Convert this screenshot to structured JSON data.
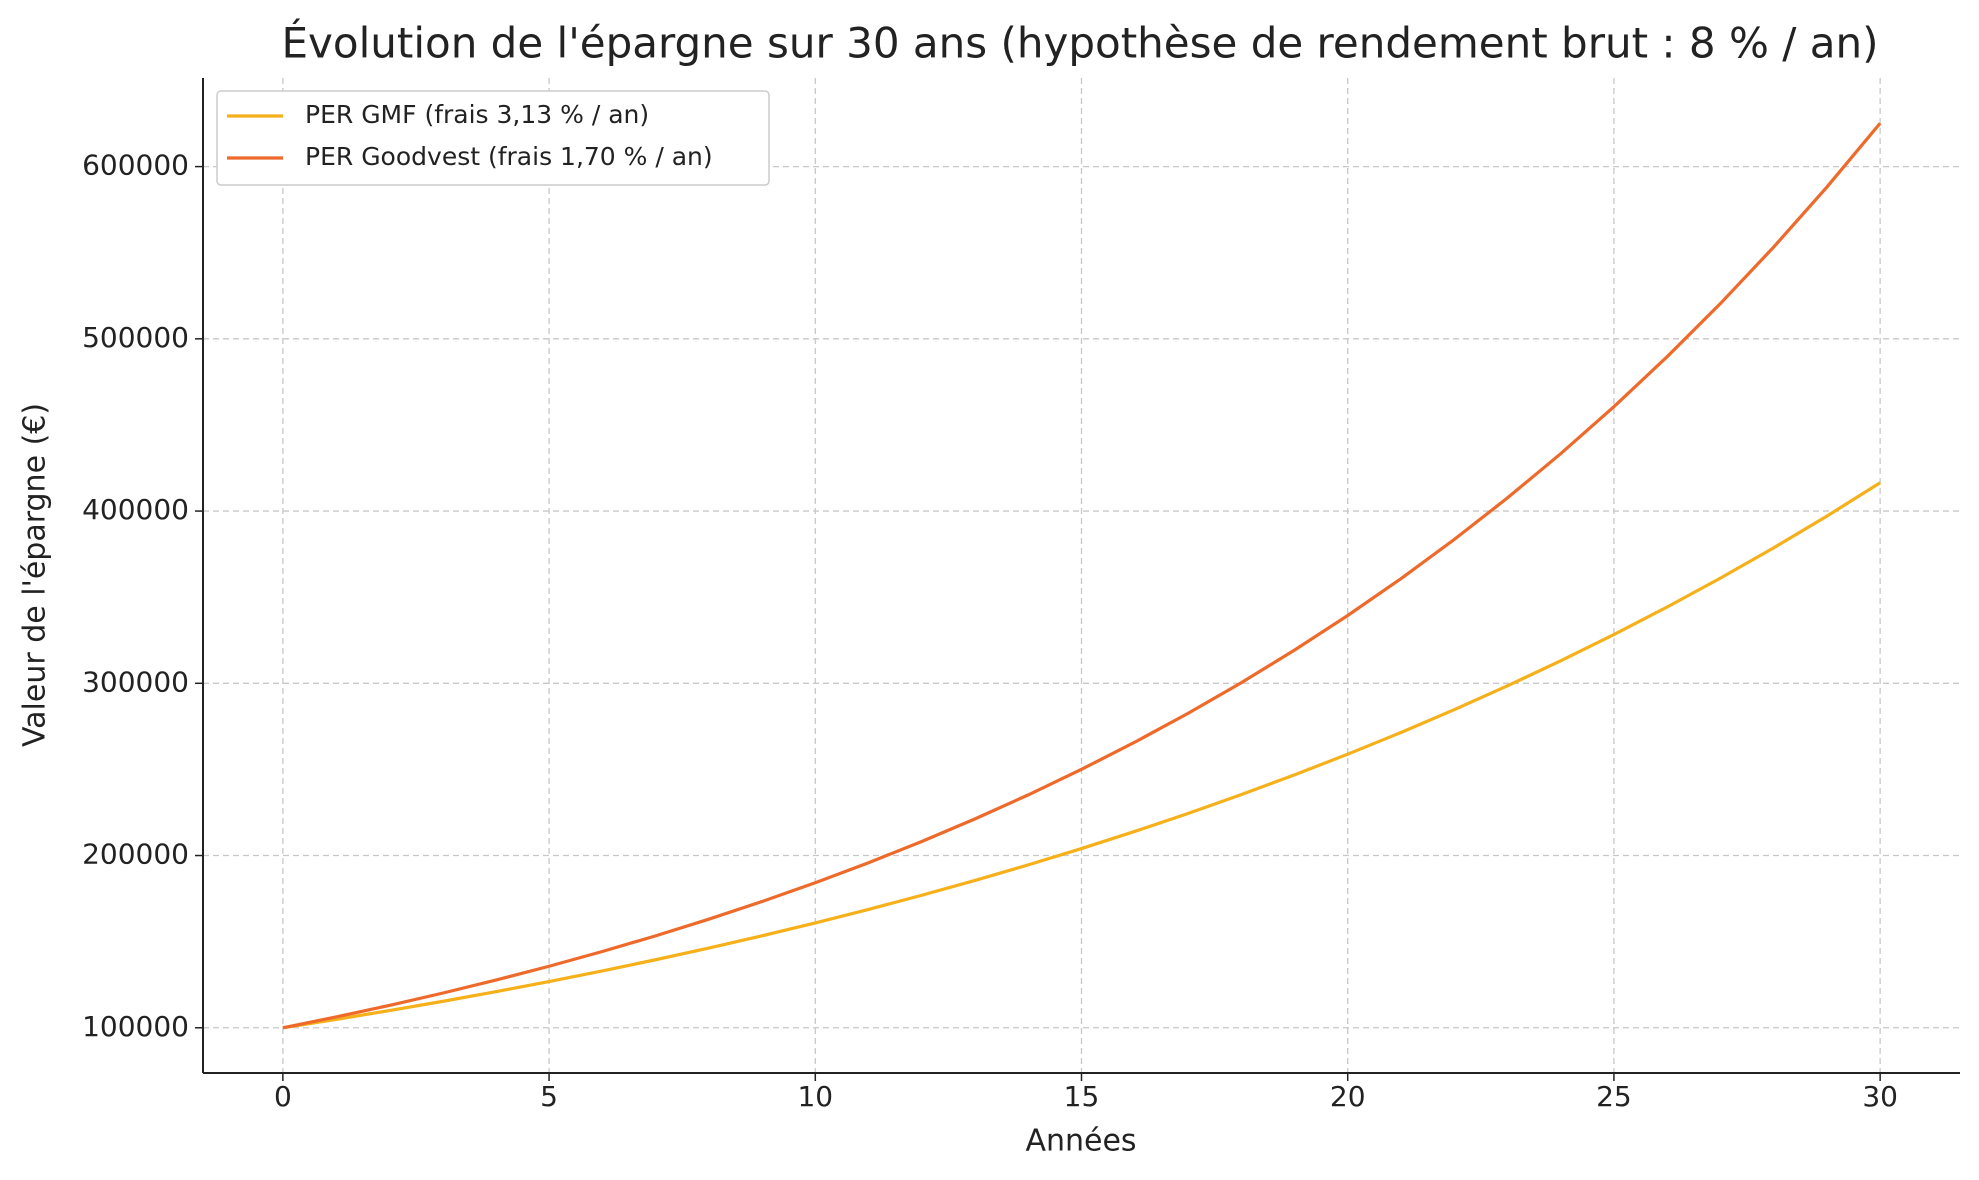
{
  "chart_data": {
    "type": "line",
    "title": "Évolution de l'épargne sur 30 ans (hypothèse de rendement brut : 8 % / an)",
    "x_label": "Années",
    "y_label": "Valeur de l'épargne (€)",
    "x": [
      0,
      1,
      2,
      3,
      4,
      5,
      6,
      7,
      8,
      9,
      10,
      11,
      12,
      13,
      14,
      15,
      16,
      17,
      18,
      19,
      20,
      21,
      22,
      23,
      24,
      25,
      26,
      27,
      28,
      29,
      30
    ],
    "series": [
      {
        "name": "PER GMF (frais 3,13 % / an)",
        "color": "#f5b01a",
        "values": [
          100000,
          104870,
          109977,
          115333,
          120950,
          126840,
          133017,
          139495,
          146289,
          153413,
          160884,
          168719,
          176936,
          185553,
          194589,
          204066,
          214004,
          224426,
          235356,
          246818,
          258838,
          271444,
          284663,
          298526,
          313065,
          328311,
          344300,
          361068,
          378652,
          397093,
          416431
        ]
      },
      {
        "name": "PER Goodvest (frais 1,70 % / an)",
        "color": "#ee6a2a",
        "values": [
          100000,
          106300,
          112997,
          120116,
          127683,
          135727,
          144278,
          153368,
          163030,
          173301,
          184219,
          195825,
          208162,
          221276,
          235216,
          250035,
          265787,
          282532,
          300332,
          319253,
          339366,
          360746,
          383473,
          407632,
          433313,
          460612,
          489631,
          520478,
          553268,
          588124,
          625176
        ]
      }
    ],
    "xlim": [
      -1.5,
      31.5
    ],
    "xticks": [
      0,
      5,
      10,
      15,
      20,
      25,
      30
    ],
    "ylim": [
      73741,
      651435
    ],
    "yticks": [
      100000,
      200000,
      300000,
      400000,
      500000,
      600000
    ],
    "grid": true,
    "legend": "upper left"
  }
}
